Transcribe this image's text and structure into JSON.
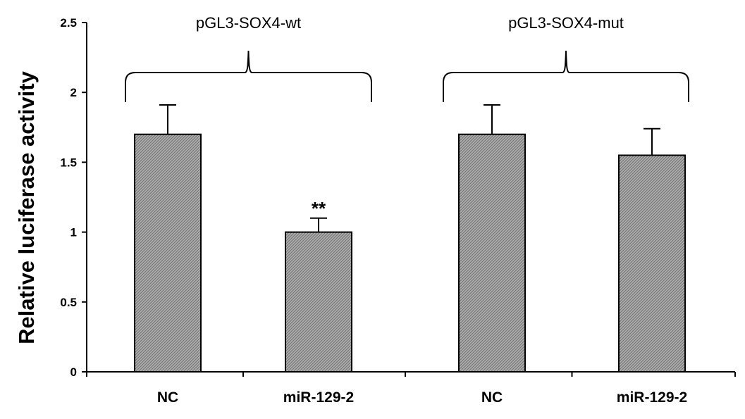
{
  "chart_data": {
    "type": "bar",
    "ylabel": "Relative luciferase activity",
    "xlabel": "",
    "ylim": [
      0,
      2.5
    ],
    "yticks": [
      "0",
      "0.5",
      "1",
      "1.5",
      "2",
      "2.5"
    ],
    "categories": [
      "NC",
      "miR-129-2",
      "NC",
      "miR-129-2"
    ],
    "values": [
      1.7,
      1.0,
      1.7,
      1.55
    ],
    "errors": [
      0.21,
      0.1,
      0.21,
      0.19
    ],
    "significance": [
      "",
      "**",
      "",
      ""
    ],
    "groups": [
      {
        "label": "pGL3-SOX4-wt",
        "categories": [
          0,
          1
        ]
      },
      {
        "label": "pGL3-SOX4-mut",
        "categories": [
          2,
          3
        ]
      }
    ],
    "bar_pattern": "crosshatch",
    "bar_color": "#a8a8a8",
    "grid": false,
    "legend": "none"
  }
}
